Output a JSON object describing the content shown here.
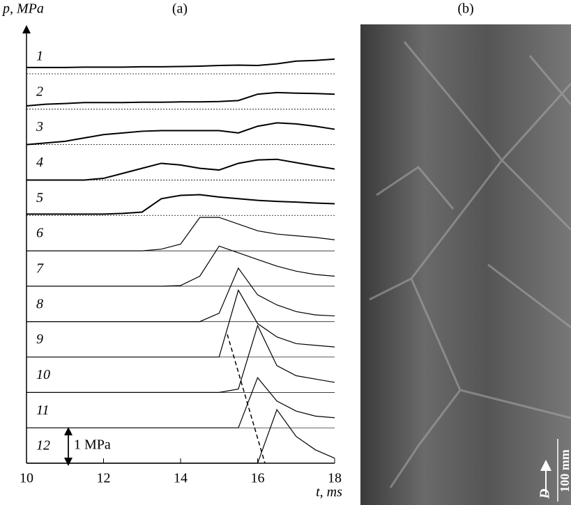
{
  "chart_data": {
    "type": "line",
    "title": "(a)",
    "ylabel": "p, MPa",
    "xlabel": "t, ms",
    "x": [
      10,
      10.5,
      11,
      11.5,
      12,
      12.5,
      13,
      13.5,
      14,
      14.5,
      15,
      15.5,
      16,
      16.5,
      17,
      17.5,
      18
    ],
    "xlim": [
      10,
      18
    ],
    "xticks": [
      10,
      12,
      14,
      16,
      18
    ],
    "scale_bar": {
      "value": 1,
      "label": "1 MPa"
    },
    "series": [
      {
        "name": "1",
        "color": "#000000",
        "values": [
          0.19,
          0.19,
          0.19,
          0.2,
          0.2,
          0.2,
          0.21,
          0.21,
          0.22,
          0.23,
          0.25,
          0.26,
          0.25,
          0.3,
          0.38,
          0.4,
          0.44
        ]
      },
      {
        "name": "2",
        "color": "#000000",
        "values": [
          0.1,
          0.15,
          0.17,
          0.2,
          0.2,
          0.2,
          0.21,
          0.21,
          0.22,
          0.22,
          0.23,
          0.26,
          0.45,
          0.5,
          0.48,
          0.47,
          0.45
        ]
      },
      {
        "name": "3",
        "color": "#000000",
        "values": [
          0,
          0.05,
          0.1,
          0.2,
          0.3,
          0.35,
          0.4,
          0.42,
          0.42,
          0.42,
          0.42,
          0.35,
          0.55,
          0.65,
          0.62,
          0.55,
          0.46
        ]
      },
      {
        "name": "4",
        "color": "#000000",
        "values": [
          0,
          0,
          0,
          0,
          0.05,
          0.2,
          0.35,
          0.5,
          0.45,
          0.35,
          0.3,
          0.5,
          0.6,
          0.62,
          0.52,
          0.42,
          0.33
        ]
      },
      {
        "name": "5",
        "color": "#000000",
        "values": [
          0.04,
          0.04,
          0.04,
          0.04,
          0.04,
          0.06,
          0.1,
          0.5,
          0.6,
          0.62,
          0.55,
          0.5,
          0.45,
          0.42,
          0.4,
          0.37,
          0.35
        ]
      },
      {
        "name": "6",
        "color": "#000000",
        "values": [
          0,
          0,
          0,
          0,
          0,
          0,
          0,
          0.05,
          0.2,
          1.0,
          1.0,
          0.8,
          0.6,
          0.5,
          0.45,
          0.4,
          0.33
        ]
      },
      {
        "name": "7",
        "color": "#000000",
        "values": [
          0,
          0,
          0,
          0,
          0,
          0,
          0,
          0,
          0.02,
          0.3,
          1.2,
          1.0,
          0.8,
          0.6,
          0.45,
          0.35,
          0.3
        ]
      },
      {
        "name": "8",
        "color": "#000000",
        "values": [
          0,
          0,
          0,
          0,
          0,
          0,
          0,
          0,
          0,
          0,
          0.25,
          1.6,
          0.8,
          0.5,
          0.3,
          0.2,
          0.17
        ]
      },
      {
        "name": "9",
        "color": "#000000",
        "values": [
          0,
          0,
          0,
          0,
          0,
          0,
          0,
          0,
          0,
          0,
          0,
          2.0,
          1.0,
          0.6,
          0.4,
          0.35,
          0.3
        ]
      },
      {
        "name": "10",
        "color": "#000000",
        "values": [
          0,
          0,
          0,
          0,
          0,
          0,
          0,
          0,
          0,
          0,
          0,
          0.1,
          2.0,
          0.8,
          0.5,
          0.4,
          0.3
        ]
      },
      {
        "name": "11",
        "color": "#000000",
        "values": [
          0,
          0,
          0,
          0,
          0,
          0,
          0,
          0,
          0,
          0,
          0,
          0,
          1.5,
          0.8,
          0.5,
          0.35,
          0.3
        ]
      },
      {
        "name": "12",
        "color": "#000000",
        "values": [
          0,
          0,
          0,
          0,
          0,
          0,
          0,
          0,
          0,
          0,
          0,
          0,
          0,
          1.6,
          0.8,
          0.4,
          0.15
        ]
      }
    ]
  },
  "photo": {
    "label": "(b)",
    "arrow_label": "D",
    "scale_label": "100 mm"
  }
}
